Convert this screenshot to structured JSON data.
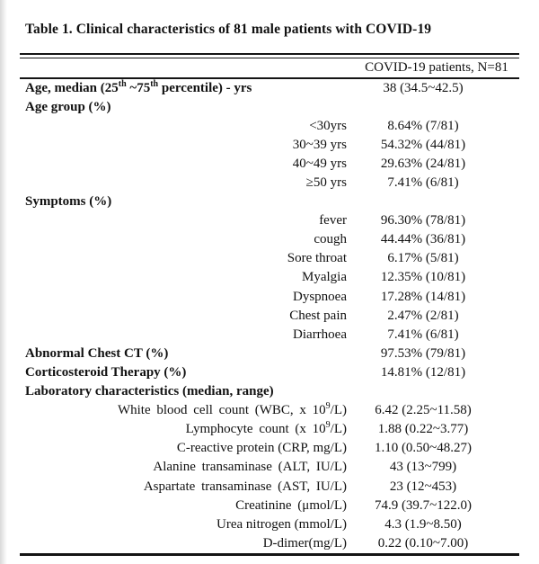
{
  "page": {
    "title": "Table 1. Clinical characteristics of 81 male patients with COVID-19"
  },
  "table": {
    "type": "table",
    "column_header": "COVID-19 patients, N=81",
    "rows": [
      {
        "style": "cat",
        "parts": [
          {
            "t": "Age, median (25"
          },
          {
            "t": "th",
            "sup": true
          },
          {
            "t": " ~75"
          },
          {
            "t": "th",
            "sup": true
          },
          {
            "t": " percentile) - yrs"
          }
        ],
        "value": "38 (34.5~42.5)"
      },
      {
        "style": "cat",
        "label": "Age group (%)",
        "value": ""
      },
      {
        "style": "sub",
        "label": "<30yrs",
        "value": "8.64% (7/81)"
      },
      {
        "style": "sub",
        "label": "30~39 yrs",
        "value": "54.32% (44/81)"
      },
      {
        "style": "sub",
        "label": "40~49 yrs",
        "value": "29.63% (24/81)"
      },
      {
        "style": "sub",
        "label": "≥50 yrs",
        "value": "7.41% (6/81)"
      },
      {
        "style": "cat",
        "label": "Symptoms (%)",
        "value": ""
      },
      {
        "style": "sub",
        "label": "fever",
        "value": "96.30% (78/81)"
      },
      {
        "style": "sub",
        "label": "cough",
        "value": "44.44% (36/81)"
      },
      {
        "style": "sub",
        "label": "Sore throat",
        "value": "6.17% (5/81)"
      },
      {
        "style": "sub",
        "label": "Myalgia",
        "value": "12.35% (10/81)"
      },
      {
        "style": "sub",
        "label": "Dyspnoea",
        "value": "17.28% (14/81)"
      },
      {
        "style": "sub",
        "label": "Chest pain",
        "value": "2.47% (2/81)"
      },
      {
        "style": "sub",
        "label": "Diarrhoea",
        "value": "7.41% (6/81)"
      },
      {
        "style": "cat",
        "label": "Abnormal Chest CT (%)",
        "value": "97.53% (79/81)"
      },
      {
        "style": "cat",
        "label": "Corticosteroid Therapy (%)",
        "value": "14.81% (12/81)"
      },
      {
        "style": "cat",
        "label": "Laboratory characteristics (median, range)",
        "value": ""
      },
      {
        "style": "sub",
        "wide": true,
        "parts": [
          {
            "t": "White blood cell count (WBC, x 10"
          },
          {
            "t": "9",
            "sup": true
          },
          {
            "t": "/L)"
          }
        ],
        "value": "6.42 (2.25~11.58)"
      },
      {
        "style": "sub",
        "wide": true,
        "parts": [
          {
            "t": "Lymphocyte count (x 10"
          },
          {
            "t": "9",
            "sup": true
          },
          {
            "t": "/L)"
          }
        ],
        "value": "1.88 (0.22~3.77)"
      },
      {
        "style": "sub",
        "label": "C-reactive protein (CRP, mg/L)",
        "value": "1.10 (0.50~48.27)"
      },
      {
        "style": "sub",
        "wide": true,
        "label": "Alanine transaminase (ALT, IU/L)",
        "value": "43 (13~799)"
      },
      {
        "style": "sub",
        "wide": true,
        "label": "Aspartate transaminase (AST, IU/L)",
        "value": "23 (12~453)"
      },
      {
        "style": "sub",
        "wide": true,
        "label": "Creatinine (μmol/L)",
        "value": "74.9 (39.7~122.0)"
      },
      {
        "style": "sub",
        "label": "Urea nitrogen (mmol/L)",
        "value": "4.3 (1.9~8.50)"
      },
      {
        "style": "sub",
        "label": "D-dimer(mg/L)",
        "value": "0.22 (0.10~7.00)"
      }
    ]
  }
}
